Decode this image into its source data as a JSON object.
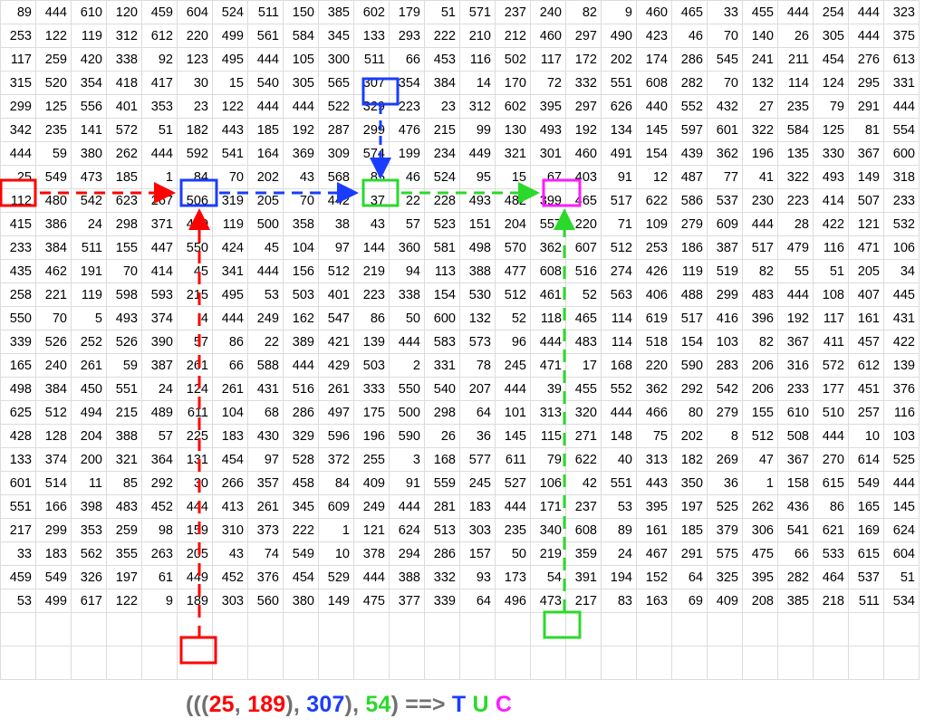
{
  "grid": [
    [
      89,
      444,
      610,
      120,
      459,
      604,
      524,
      511,
      150,
      385,
      602,
      179,
      51,
      571,
      237,
      240,
      82,
      9,
      460,
      465,
      33,
      455,
      444,
      254,
      444,
      323
    ],
    [
      253,
      122,
      119,
      312,
      612,
      220,
      499,
      561,
      584,
      345,
      133,
      293,
      222,
      210,
      212,
      460,
      297,
      490,
      423,
      46,
      70,
      140,
      26,
      305,
      444,
      375
    ],
    [
      117,
      259,
      420,
      338,
      92,
      123,
      495,
      444,
      105,
      300,
      511,
      66,
      453,
      116,
      502,
      117,
      172,
      202,
      174,
      286,
      545,
      241,
      211,
      454,
      276,
      613
    ],
    [
      315,
      520,
      354,
      418,
      417,
      30,
      15,
      540,
      305,
      565,
      307,
      354,
      384,
      14,
      170,
      72,
      332,
      551,
      608,
      282,
      70,
      132,
      114,
      124,
      295,
      331
    ],
    [
      299,
      125,
      556,
      401,
      353,
      23,
      122,
      444,
      444,
      522,
      329,
      223,
      23,
      312,
      602,
      395,
      297,
      626,
      440,
      552,
      432,
      27,
      235,
      79,
      291,
      444
    ],
    [
      342,
      235,
      141,
      572,
      51,
      182,
      443,
      185,
      192,
      287,
      299,
      476,
      215,
      99,
      130,
      493,
      192,
      134,
      145,
      597,
      601,
      322,
      584,
      125,
      81,
      554
    ],
    [
      444,
      59,
      380,
      262,
      444,
      592,
      541,
      164,
      369,
      309,
      574,
      199,
      234,
      449,
      321,
      301,
      460,
      491,
      154,
      439,
      362,
      196,
      135,
      330,
      367,
      600
    ],
    [
      25,
      549,
      473,
      185,
      1,
      84,
      70,
      202,
      43,
      568,
      85,
      46,
      524,
      95,
      15,
      67,
      403,
      91,
      12,
      487,
      77,
      41,
      322,
      493,
      149,
      318
    ],
    [
      112,
      480,
      542,
      623,
      267,
      506,
      319,
      205,
      70,
      442,
      37,
      22,
      228,
      493,
      482,
      399,
      465,
      517,
      622,
      586,
      537,
      230,
      223,
      414,
      507,
      233
    ],
    [
      415,
      386,
      24,
      298,
      371,
      450,
      119,
      500,
      358,
      38,
      43,
      57,
      523,
      151,
      204,
      557,
      220,
      71,
      109,
      279,
      609,
      444,
      28,
      422,
      121,
      532
    ],
    [
      233,
      384,
      511,
      155,
      447,
      550,
      424,
      45,
      104,
      97,
      144,
      360,
      581,
      498,
      570,
      362,
      607,
      512,
      253,
      186,
      387,
      517,
      479,
      116,
      471,
      106
    ],
    [
      435,
      462,
      191,
      70,
      414,
      45,
      341,
      444,
      156,
      512,
      219,
      94,
      113,
      388,
      477,
      608,
      516,
      274,
      426,
      119,
      519,
      82,
      55,
      51,
      205,
      34
    ],
    [
      258,
      221,
      119,
      598,
      593,
      215,
      495,
      53,
      503,
      401,
      223,
      338,
      154,
      530,
      512,
      461,
      52,
      563,
      406,
      488,
      299,
      483,
      444,
      108,
      407,
      445
    ],
    [
      550,
      70,
      5,
      493,
      374,
      4,
      444,
      249,
      162,
      547,
      86,
      50,
      600,
      132,
      52,
      118,
      465,
      114,
      619,
      517,
      416,
      396,
      192,
      117,
      161,
      431
    ],
    [
      339,
      526,
      252,
      526,
      390,
      57,
      86,
      22,
      389,
      421,
      139,
      444,
      583,
      573,
      96,
      444,
      483,
      114,
      518,
      154,
      103,
      82,
      367,
      411,
      457,
      422
    ],
    [
      165,
      240,
      261,
      59,
      387,
      261,
      66,
      588,
      444,
      429,
      503,
      2,
      331,
      78,
      245,
      471,
      17,
      168,
      220,
      590,
      283,
      206,
      316,
      572,
      612,
      139
    ],
    [
      498,
      384,
      450,
      551,
      24,
      124,
      261,
      431,
      516,
      261,
      333,
      550,
      540,
      207,
      444,
      39,
      455,
      552,
      362,
      292,
      542,
      206,
      233,
      177,
      451,
      376
    ],
    [
      625,
      512,
      494,
      215,
      489,
      611,
      104,
      68,
      286,
      497,
      175,
      500,
      298,
      64,
      101,
      313,
      320,
      444,
      466,
      80,
      279,
      155,
      610,
      510,
      257,
      116
    ],
    [
      428,
      128,
      204,
      388,
      57,
      225,
      183,
      430,
      329,
      596,
      196,
      590,
      26,
      36,
      145,
      115,
      271,
      148,
      75,
      202,
      8,
      512,
      508,
      444,
      10,
      103
    ],
    [
      133,
      374,
      200,
      321,
      364,
      131,
      454,
      97,
      528,
      372,
      255,
      3,
      168,
      577,
      611,
      79,
      622,
      40,
      313,
      182,
      269,
      47,
      367,
      270,
      614,
      525
    ],
    [
      601,
      514,
      11,
      85,
      292,
      30,
      266,
      357,
      458,
      84,
      409,
      91,
      559,
      245,
      527,
      106,
      42,
      551,
      443,
      350,
      36,
      1,
      158,
      615,
      549,
      444
    ],
    [
      551,
      166,
      398,
      483,
      452,
      444,
      413,
      261,
      345,
      609,
      249,
      444,
      281,
      183,
      444,
      171,
      237,
      53,
      395,
      197,
      525,
      262,
      436,
      86,
      165,
      145
    ],
    [
      217,
      299,
      353,
      259,
      98,
      159,
      310,
      373,
      222,
      1,
      121,
      624,
      513,
      303,
      235,
      340,
      608,
      89,
      161,
      185,
      379,
      306,
      541,
      621,
      169,
      624
    ],
    [
      33,
      183,
      562,
      355,
      263,
      205,
      43,
      74,
      549,
      10,
      378,
      294,
      286,
      157,
      50,
      219,
      359,
      24,
      467,
      291,
      575,
      475,
      66,
      533,
      615,
      604
    ],
    [
      459,
      549,
      326,
      197,
      61,
      449,
      452,
      376,
      454,
      529,
      444,
      388,
      332,
      93,
      173,
      54,
      391,
      194,
      152,
      64,
      325,
      395,
      282,
      464,
      537,
      51
    ],
    [
      53,
      499,
      617,
      122,
      9,
      189,
      303,
      560,
      380,
      149,
      475,
      377,
      339,
      64,
      496,
      473,
      217,
      83,
      163,
      69,
      409,
      208,
      385,
      218,
      511,
      534
    ]
  ],
  "colors": {
    "red": "#ff0000",
    "blue": "#1a3cff",
    "green": "#2bd92b",
    "magenta": "#ff1aff",
    "gray": "#707070"
  },
  "formula": {
    "open": "(((",
    "a": "25",
    "comma1": ", ",
    "b": "189",
    "close1": "), ",
    "c": "307",
    "close2": "), ",
    "d": "54",
    "close3": ") ==> ",
    "t": "T",
    "space1": " ",
    "u": "U",
    "space2": " ",
    "letter_c": "C"
  }
}
